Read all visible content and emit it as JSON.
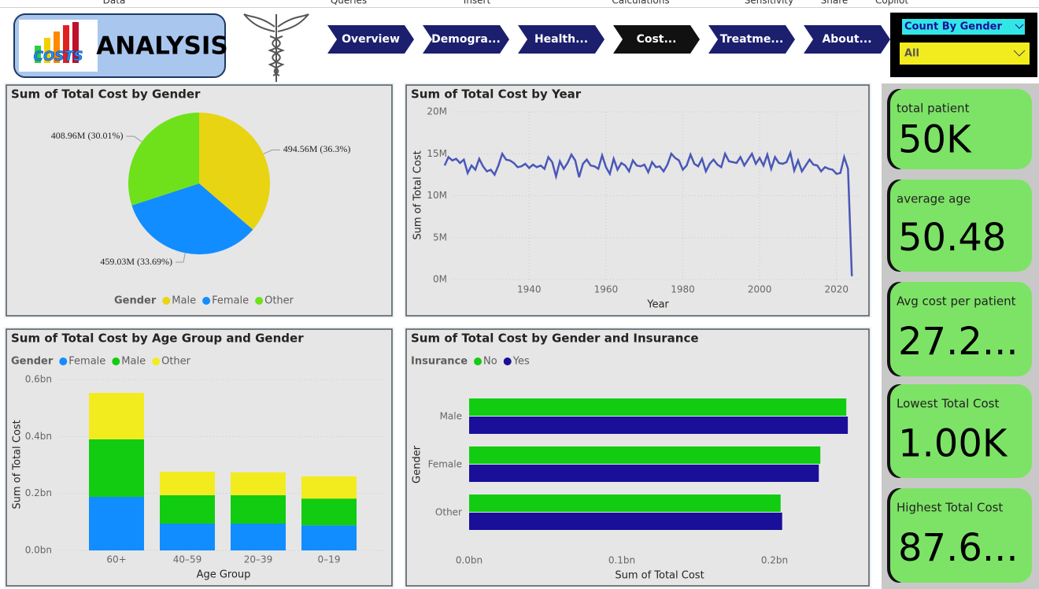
{
  "ribbon": [
    "Data",
    "Queries",
    "Insert",
    "Calculations",
    "Sensitivity",
    "Share",
    "Copilot"
  ],
  "header": {
    "logo_text": "COSTS",
    "title": "ANALYSIS"
  },
  "nav": [
    "Overview",
    "Demogra...",
    "Health...",
    "Cost...",
    "Treatme...",
    "About..."
  ],
  "slicers": [
    "Count By Gender",
    "All"
  ],
  "chart_data": [
    {
      "type": "pie",
      "title": "Sum of Total Cost by Gender",
      "legend_title": "Gender",
      "legend": "bottom",
      "categories": [
        "Male",
        "Female",
        "Other"
      ],
      "values": [
        494.56,
        459.03,
        408.96
      ],
      "value_labels": [
        "494.56M (36.3%)",
        "459.03M (33.69%)",
        "408.96M (30.01%)"
      ],
      "colors": [
        "#e8d412",
        "#118dff",
        "#6ee11b"
      ]
    },
    {
      "type": "line",
      "title": "Sum of Total Cost by Year",
      "x_label": "Year",
      "y_label": "Sum of Total Cost",
      "color": "#4a57b8",
      "x": [
        1918,
        1919,
        1920,
        1921,
        1922,
        1923,
        1924,
        1925,
        1926,
        1927,
        1928,
        1929,
        1930,
        1931,
        1932,
        1933,
        1934,
        1935,
        1936,
        1937,
        1938,
        1939,
        1940,
        1941,
        1942,
        1943,
        1944,
        1945,
        1946,
        1947,
        1948,
        1949,
        1950,
        1951,
        1952,
        1953,
        1954,
        1955,
        1956,
        1957,
        1958,
        1959,
        1960,
        1961,
        1962,
        1963,
        1964,
        1965,
        1966,
        1967,
        1968,
        1969,
        1970,
        1971,
        1972,
        1973,
        1974,
        1975,
        1976,
        1977,
        1978,
        1979,
        1980,
        1981,
        1982,
        1983,
        1984,
        1985,
        1986,
        1987,
        1988,
        1989,
        1990,
        1991,
        1992,
        1993,
        1994,
        1995,
        1996,
        1997,
        1998,
        1999,
        2000,
        2001,
        2002,
        2003,
        2004,
        2005,
        2006,
        2007,
        2008,
        2009,
        2010,
        2011,
        2012,
        2013,
        2014,
        2015,
        2016,
        2017,
        2018,
        2019,
        2020,
        2021,
        2022,
        2023,
        2024
      ],
      "values": [
        13.6,
        14.6,
        14.2,
        14.4,
        13.9,
        14.3,
        12.7,
        13.6,
        13.1,
        14.4,
        13.5,
        12.9,
        13.1,
        12.5,
        13.6,
        15.0,
        14.3,
        14.2,
        13.9,
        13.4,
        13.5,
        13.8,
        13.3,
        13.7,
        13.4,
        13.6,
        13.2,
        14.6,
        14.0,
        12.3,
        14.1,
        13.2,
        13.9,
        14.9,
        14.2,
        12.2,
        13.8,
        14.3,
        13.6,
        13.5,
        13.2,
        14.8,
        13.4,
        12.6,
        14.4,
        13.1,
        13.9,
        13.6,
        12.9,
        14.2,
        13.6,
        13.5,
        13.7,
        12.8,
        14.0,
        13.4,
        13.5,
        12.9,
        13.7,
        15.0,
        14.5,
        14.2,
        13.1,
        13.6,
        14.9,
        13.8,
        13.5,
        14.4,
        12.9,
        13.8,
        14.3,
        13.7,
        13.4,
        15.0,
        14.1,
        14.0,
        13.9,
        14.6,
        13.6,
        14.3,
        15.0,
        13.8,
        14.5,
        13.6,
        14.9,
        13.2,
        14.6,
        13.9,
        13.8,
        14.0,
        15.1,
        13.0,
        14.2,
        12.9,
        13.6,
        14.3,
        13.7,
        13.6,
        12.9,
        13.4,
        13.2,
        13.1,
        12.6,
        12.7,
        14.6,
        13.2,
        0.4
      ],
      "xlim": [
        1917,
        2026
      ],
      "xticks": [
        1940,
        1960,
        1980,
        2000,
        2020
      ],
      "ylim": [
        0,
        20
      ],
      "yticks": [
        {
          "value": 0,
          "label": "0M"
        },
        {
          "value": 5,
          "label": "5M"
        },
        {
          "value": 10,
          "label": "10M"
        },
        {
          "value": 15,
          "label": "15M"
        },
        {
          "value": 20,
          "label": "20M"
        }
      ],
      "grid": true
    },
    {
      "type": "bar",
      "stacked": true,
      "title": "Sum of Total Cost by Age Group and Gender",
      "legend_title": "Gender",
      "legend": "top-left",
      "x_label": "Age Group",
      "y_label": "Sum of Total Cost",
      "categories": [
        "60+",
        "40–59",
        "20–39",
        "0–19"
      ],
      "series": [
        {
          "name": "Female",
          "color": "#118dff",
          "values": [
            0.188,
            0.094,
            0.094,
            0.088
          ]
        },
        {
          "name": "Male",
          "color": "#12cc12",
          "values": [
            0.202,
            0.1,
            0.1,
            0.094
          ]
        },
        {
          "name": "Other",
          "color": "#f2ec1f",
          "values": [
            0.163,
            0.082,
            0.08,
            0.078
          ]
        }
      ],
      "ylim": [
        0,
        0.6
      ],
      "yticks": [
        {
          "value": 0,
          "label": "0.0bn"
        },
        {
          "value": 0.2,
          "label": "0.2bn"
        },
        {
          "value": 0.4,
          "label": "0.4bn"
        },
        {
          "value": 0.6,
          "label": "0.6bn"
        }
      ],
      "grid": true
    },
    {
      "type": "bar",
      "horizontal": true,
      "title": "Sum of Total Cost by Gender and Insurance",
      "legend_title": "Insurance",
      "legend": "top-left",
      "x_label": "Sum of Total Cost",
      "y_label": "Gender",
      "categories": [
        "Male",
        "Female",
        "Other"
      ],
      "series": [
        {
          "name": "No",
          "color": "#12cc12",
          "values": [
            0.247,
            0.23,
            0.204
          ]
        },
        {
          "name": "Yes",
          "color": "#1a0f99",
          "values": [
            0.248,
            0.229,
            0.205
          ]
        }
      ],
      "xlim": [
        0,
        0.25
      ],
      "xticks": [
        {
          "value": 0,
          "label": "0.0bn"
        },
        {
          "value": 0.1,
          "label": "0.1bn"
        },
        {
          "value": 0.2,
          "label": "0.2bn"
        }
      ],
      "grid": false
    }
  ],
  "cards": [
    {
      "label": "total patient",
      "value": "50K"
    },
    {
      "label": "average age",
      "value": "50.48"
    },
    {
      "label": "Avg cost per patient",
      "value": "27.2..."
    },
    {
      "label": "Lowest Total Cost",
      "value": "1.00K"
    },
    {
      "label": "Highest Total Cost",
      "value": "87.6..."
    }
  ]
}
